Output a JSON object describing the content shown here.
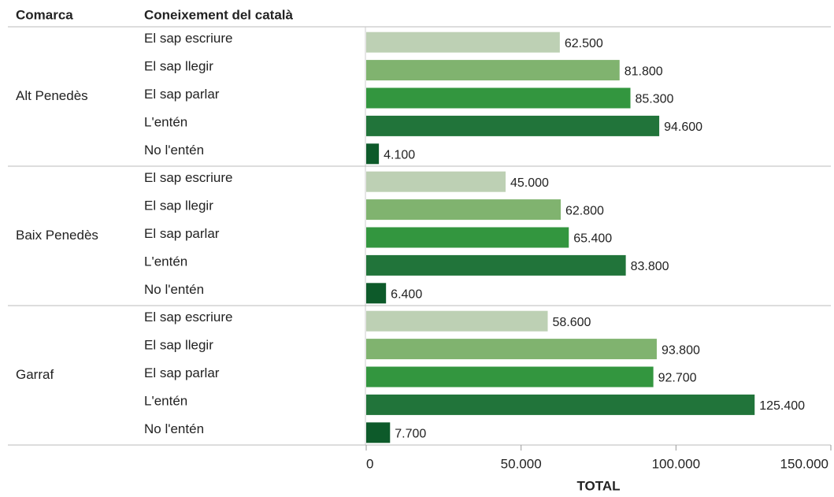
{
  "chart_data": {
    "type": "bar",
    "column_headers": [
      "Comarca",
      "Coneixement del català"
    ],
    "colors": [
      "#bdd0b4",
      "#80b36f",
      "#33963f",
      "#21743a",
      "#0d5a2a"
    ],
    "groups": [
      {
        "name": "Alt Penedès",
        "categories": [
          "El sap escriure",
          "El sap llegir",
          "El sap parlar",
          "L'entén",
          "No l'entén"
        ],
        "values": [
          62500,
          81800,
          85300,
          94600,
          4100
        ],
        "value_labels": [
          "62.500",
          "81.800",
          "85.300",
          "94.600",
          "4.100"
        ]
      },
      {
        "name": "Baix Penedès",
        "categories": [
          "El sap escriure",
          "El sap llegir",
          "El sap parlar",
          "L'entén",
          "No l'entén"
        ],
        "values": [
          45000,
          62800,
          65400,
          83800,
          6400
        ],
        "value_labels": [
          "45.000",
          "62.800",
          "65.400",
          "83.800",
          "6.400"
        ]
      },
      {
        "name": "Garraf",
        "categories": [
          "El sap escriure",
          "El sap llegir",
          "El sap parlar",
          "L'entén",
          "No l'entén"
        ],
        "values": [
          58600,
          93800,
          92700,
          125400,
          7700
        ],
        "value_labels": [
          "58.600",
          "93.800",
          "92.700",
          "125.400",
          "7.700"
        ]
      }
    ],
    "xlim": [
      0,
      150000
    ],
    "xticks": [
      0,
      {
        "value": 50000,
        "label": "50.000"
      },
      {
        "value": 100000,
        "label": "100.000"
      },
      {
        "value": 150000,
        "label": "150.000"
      }
    ],
    "x_label": "TOTAL"
  }
}
